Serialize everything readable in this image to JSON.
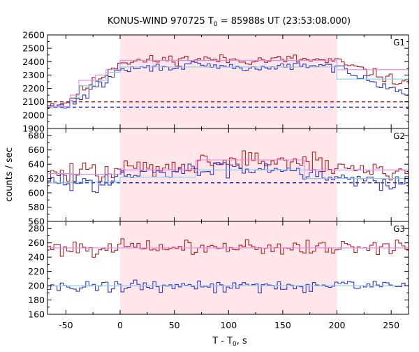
{
  "chart_data": {
    "type": "line",
    "title_main": "KONUS-WIND 970725 T",
    "title_sub": "0",
    "title_rest": " = 85988s UT (23:53:08.000)",
    "xlabel_main": "T - T",
    "xlabel_sub": "0",
    "xlabel_rest": ", s",
    "ylabel": "counts / sec",
    "xlim": [
      -67,
      266
    ],
    "xticks": [
      -50,
      0,
      50,
      100,
      150,
      200,
      250
    ],
    "xtick_labels": [
      "-50",
      "0",
      "50",
      "100",
      "150",
      "200",
      "250"
    ],
    "shaded_interval": [
      0,
      200
    ],
    "bin_width": 2.944,
    "colors": {
      "raw": "#b22222",
      "raw_alt": "#3333cc",
      "model": "#ee82ee",
      "model_alt": "#87ceeb",
      "shade": "#ffe6e8",
      "bg_red": "#cc0000",
      "bg_blue": "#0000cc"
    },
    "panels": [
      {
        "label": "G1",
        "ylim": [
          1900,
          2600
        ],
        "yticks": [
          1900,
          2000,
          2100,
          2200,
          2300,
          2400,
          2500,
          2600
        ],
        "ytick_labels": [
          "1900",
          "2000",
          "2100",
          "2200",
          "2300",
          "2400",
          "2500",
          "2600"
        ],
        "background": [
          {
            "name": "",
            "value": 2100,
            "color": "#cc0000"
          },
          {
            "name": "",
            "value": 2060,
            "color": "#0000cc"
          }
        ],
        "series": [
          {
            "name": "",
            "color": "#b22222",
            "profile": [
              [
                -66,
                2080
              ],
              [
                -50,
                2090
              ],
              [
                -35,
                2190
              ],
              [
                -15,
                2300
              ],
              [
                0,
                2400
              ],
              [
                60,
                2420
              ],
              [
                130,
                2410
              ],
              [
                160,
                2420
              ],
              [
                200,
                2400
              ],
              [
                230,
                2320
              ],
              [
                266,
                2230
              ]
            ],
            "noise": 32,
            "seed": 11
          },
          {
            "name": "",
            "color": "#3333cc",
            "profile": [
              [
                -66,
                2060
              ],
              [
                -50,
                2070
              ],
              [
                -35,
                2130
              ],
              [
                -15,
                2240
              ],
              [
                0,
                2340
              ],
              [
                60,
                2370
              ],
              [
                130,
                2350
              ],
              [
                160,
                2370
              ],
              [
                200,
                2360
              ],
              [
                230,
                2270
              ],
              [
                266,
                2150
              ]
            ],
            "noise": 26,
            "seed": 29
          },
          {
            "name": "",
            "color": "#ee82ee",
            "step": [
              [
                -66,
                -46,
                2065
              ],
              [
                -46,
                -38,
                2150
              ],
              [
                -38,
                -23,
                2260
              ],
              [
                -23,
                -13,
                2300
              ],
              [
                -13,
                0,
                2340
              ],
              [
                0,
                200,
                2410
              ],
              [
                200,
                266,
                2340
              ]
            ]
          },
          {
            "name": "",
            "color": "#87ceeb",
            "step": [
              [
                -66,
                -46,
                2055
              ],
              [
                -46,
                -38,
                2130
              ],
              [
                -38,
                -23,
                2220
              ],
              [
                -23,
                -13,
                2260
              ],
              [
                -13,
                0,
                2320
              ],
              [
                0,
                200,
                2360
              ],
              [
                200,
                266,
                2270
              ]
            ]
          }
        ]
      },
      {
        "label": "G2",
        "ylim": [
          560,
          690
        ],
        "yticks": [
          560,
          580,
          600,
          620,
          640,
          660,
          680
        ],
        "ytick_labels": [
          "560",
          "580",
          "600",
          "620",
          "640",
          "660",
          "680"
        ],
        "background": [
          {
            "name": "",
            "value": 614,
            "color": "#0000cc"
          }
        ],
        "series": [
          {
            "name": "",
            "color": "#b22222",
            "profile": [
              [
                -66,
                626
              ],
              [
                -20,
                628
              ],
              [
                0,
                632
              ],
              [
                60,
                640
              ],
              [
                100,
                645
              ],
              [
                150,
                645
              ],
              [
                200,
                636
              ],
              [
                266,
                630
              ]
            ],
            "noise": 12,
            "seed": 47
          },
          {
            "name": "",
            "color": "#3333cc",
            "profile": [
              [
                -66,
                614
              ],
              [
                -20,
                616
              ],
              [
                0,
                622
              ],
              [
                60,
                630
              ],
              [
                100,
                634
              ],
              [
                150,
                636
              ],
              [
                200,
                622
              ],
              [
                266,
                614
              ]
            ],
            "noise": 10,
            "seed": 83
          },
          {
            "name": "",
            "color": "#ee82ee",
            "step": [
              [
                -66,
                -45,
                627
              ],
              [
                -45,
                0,
                626
              ],
              [
                0,
                70,
                632
              ],
              [
                70,
                170,
                646
              ],
              [
                170,
                266,
                632
              ]
            ]
          },
          {
            "name": "",
            "color": "#87ceeb",
            "step": [
              [
                -66,
                -45,
                614
              ],
              [
                -45,
                0,
                615
              ],
              [
                0,
                70,
                622
              ],
              [
                70,
                170,
                632
              ],
              [
                170,
                266,
                620
              ]
            ]
          }
        ]
      },
      {
        "label": "G3",
        "ylim": [
          160,
          290
        ],
        "yticks": [
          160,
          180,
          200,
          220,
          240,
          260,
          280
        ],
        "ytick_labels": [
          "160",
          "180",
          "200",
          "220",
          "240",
          "260",
          "280"
        ],
        "background": [],
        "series": [
          {
            "name": "",
            "color": "#b22222",
            "profile": [
              [
                -66,
                253
              ],
              [
                266,
                254
              ]
            ],
            "noise": 9,
            "seed": 101
          },
          {
            "name": "",
            "color": "#3333cc",
            "profile": [
              [
                -66,
                199
              ],
              [
                266,
                200
              ]
            ],
            "noise": 7,
            "seed": 131
          },
          {
            "name": "",
            "color": "#ee82ee",
            "step": [
              [
                -66,
                266,
                253
              ]
            ]
          },
          {
            "name": "",
            "color": "#87ceeb",
            "step": [
              [
                -66,
                266,
                200
              ]
            ]
          }
        ]
      }
    ]
  }
}
